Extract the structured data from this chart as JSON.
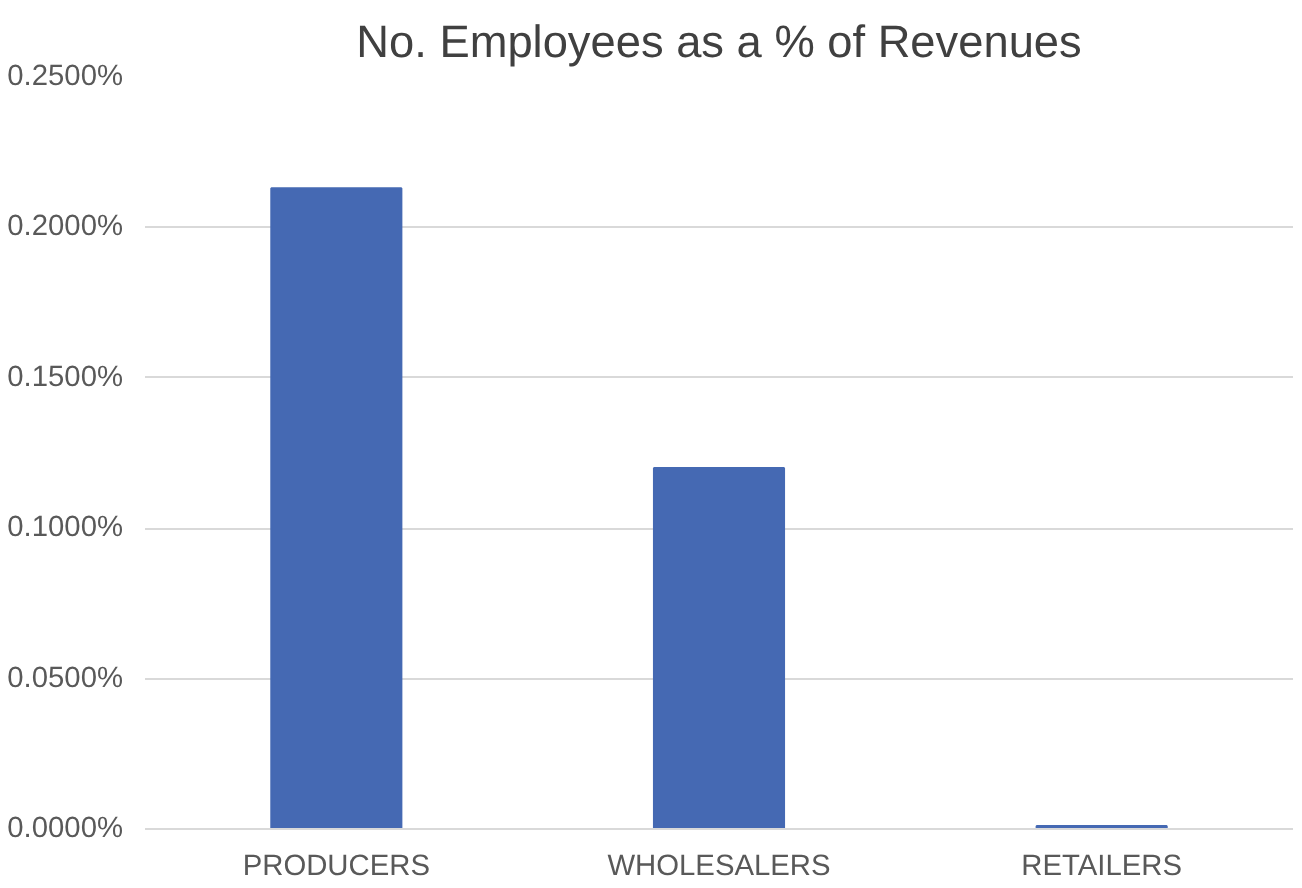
{
  "chart_data": {
    "type": "bar",
    "title": "No. Employees as a % of Revenues",
    "categories": [
      "PRODUCERS",
      "WHOLESALERS",
      "RETAILERS"
    ],
    "values": [
      0.213,
      0.12,
      0.001
    ],
    "color": "#4569b3",
    "ylim": [
      0,
      0.25
    ],
    "yticks": [
      {
        "value": 0,
        "label": "0.0000%"
      },
      {
        "value": 0.05,
        "label": "0.0500%"
      },
      {
        "value": 0.1,
        "label": "0.1000%"
      },
      {
        "value": 0.15,
        "label": "0.1500%"
      },
      {
        "value": 0.2,
        "label": "0.2000%"
      },
      {
        "value": 0.25,
        "label": "0.2500%"
      }
    ],
    "grid": "y"
  }
}
